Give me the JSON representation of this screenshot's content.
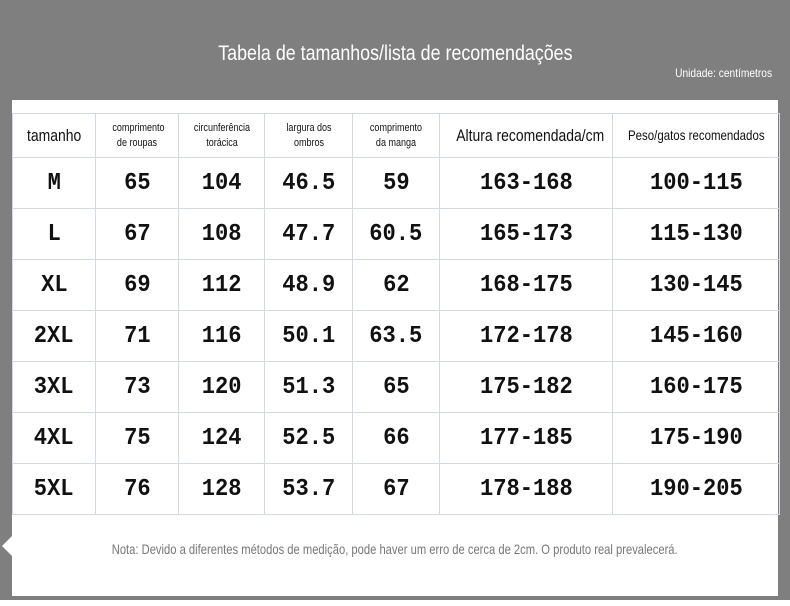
{
  "title": "Tabela de tamanhos/lista de recomendações",
  "unit": "Unidade: centímetros",
  "headers": [
    "tamanho",
    "comprimento de roupas",
    "circunferência torácica",
    "largura dos ombros",
    "comprimento da manga",
    "Altura recomendada/cm",
    "Peso/gatos recomendados"
  ],
  "rows": [
    [
      "M",
      "65",
      "104",
      "46.5",
      "59",
      "163-168",
      "100-115"
    ],
    [
      "L",
      "67",
      "108",
      "47.7",
      "60.5",
      "165-173",
      "115-130"
    ],
    [
      "XL",
      "69",
      "112",
      "48.9",
      "62",
      "168-175",
      "130-145"
    ],
    [
      "2XL",
      "71",
      "116",
      "50.1",
      "63.5",
      "172-178",
      "145-160"
    ],
    [
      "3XL",
      "73",
      "120",
      "51.3",
      "65",
      "175-182",
      "160-175"
    ],
    [
      "4XL",
      "75",
      "124",
      "52.5",
      "66",
      "177-185",
      "175-190"
    ],
    [
      "5XL",
      "76",
      "128",
      "53.7",
      "67",
      "178-188",
      "190-205"
    ]
  ],
  "note": "Nota: Devido a diferentes métodos de medição, pode haver um erro de cerca de 2cm. O produto real prevalecerá."
}
